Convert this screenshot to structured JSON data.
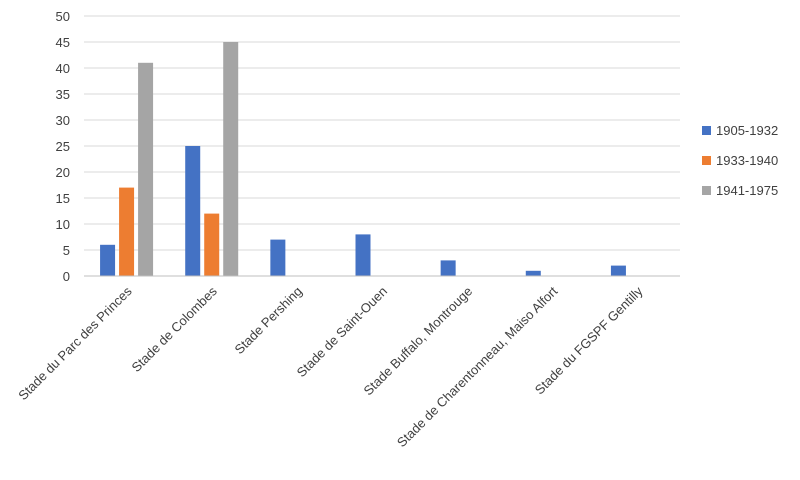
{
  "chart_data": {
    "type": "bar",
    "title": "",
    "xlabel": "",
    "ylabel": "",
    "ylim": [
      0,
      50
    ],
    "yticks": [
      0,
      5,
      10,
      15,
      20,
      25,
      30,
      35,
      40,
      45,
      50
    ],
    "grid": true,
    "legend_position": "right",
    "categories": [
      "Stade du Parc des Princes",
      "Stade de Colombes",
      "Stade Pershing",
      "Stade de Saint-Ouen",
      "Stade Buffalo, Montrouge",
      "Stade de Charentonneau, Maiso Alfort",
      "Stade du FGSPF Gentilly"
    ],
    "series": [
      {
        "name": "1905-1932",
        "color": "#4472c4",
        "values": [
          6,
          25,
          7,
          8,
          3,
          1,
          2
        ]
      },
      {
        "name": "1933-1940",
        "color": "#ed7d31",
        "values": [
          17,
          12,
          0,
          0,
          0,
          0,
          0
        ]
      },
      {
        "name": "1941-1975",
        "color": "#a5a5a5",
        "values": [
          41,
          45,
          0,
          0,
          0,
          0,
          0
        ]
      }
    ]
  }
}
